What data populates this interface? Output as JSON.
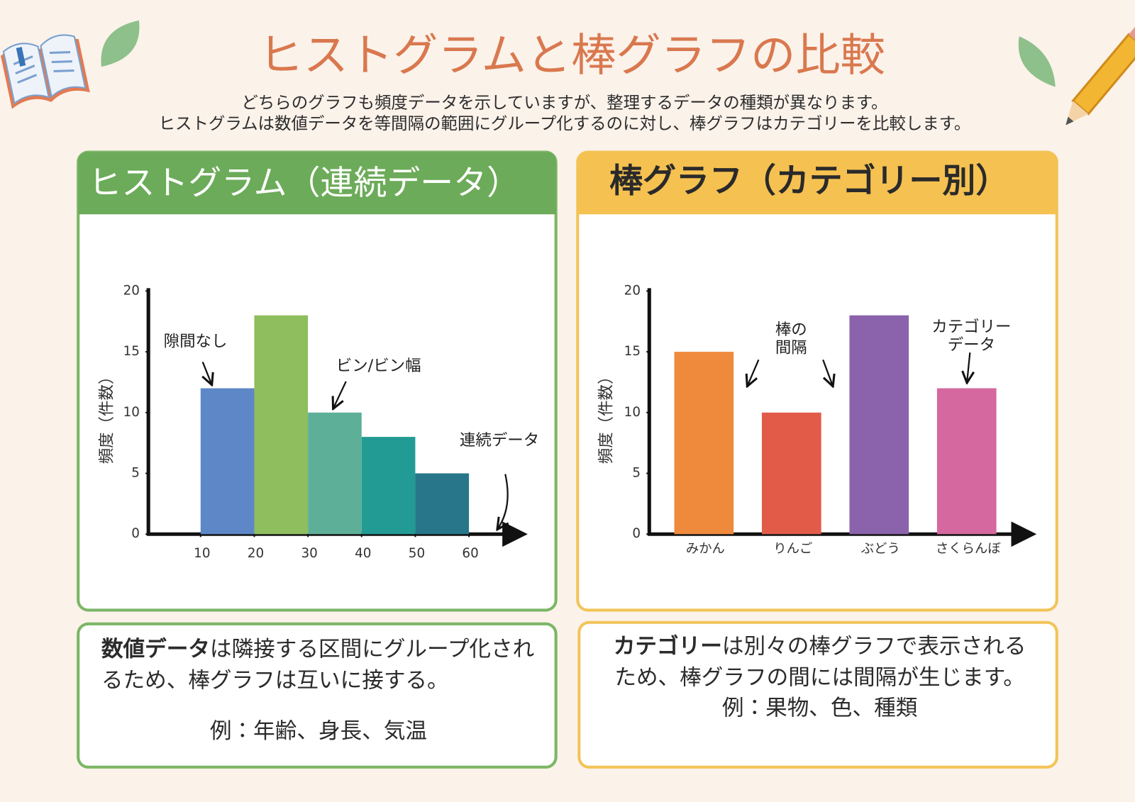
{
  "header": {
    "title": "ヒストグラムと棒グラフの比較",
    "subtitle": [
      "どちらのグラフも頻度データを示していますが、整理するデータの種類が異なります。",
      "ヒストグラムは数値データを等間隔の範囲にグループ化するのに対し、棒グラフはカテゴリーを比較します。"
    ]
  },
  "chart_data": [
    {
      "type": "histogram",
      "title": "ヒストグラム（連続データ）",
      "y_label": "頻度（件数）",
      "bins": [
        10,
        20,
        30,
        40,
        50,
        60
      ],
      "values": [
        12,
        18,
        10,
        8,
        5
      ],
      "colors": [
        "#5d87c6",
        "#8fbe5e",
        "#5daf98",
        "#229b94",
        "#27768a"
      ],
      "xlim": [
        0,
        70
      ],
      "xticks": [
        10,
        20,
        30,
        40,
        50,
        60
      ],
      "ylim": [
        0,
        20
      ],
      "yticks": [
        0,
        5,
        10,
        15,
        20
      ],
      "annotations": [
        "隙間なし",
        "ビン/ビン幅",
        "連続データ"
      ]
    },
    {
      "type": "bar",
      "title": "棒グラフ（カテゴリー別）",
      "y_label": "頻度（件数）",
      "categories": [
        "みかん",
        "りんご",
        "ぶどう",
        "さくらんぼ"
      ],
      "values": [
        15,
        10,
        18,
        12
      ],
      "colors": [
        "#ef8a3d",
        "#e25b49",
        "#8b63ad",
        "#d4689f"
      ],
      "ylim": [
        0,
        20
      ],
      "yticks": [
        0,
        5,
        10,
        15,
        20
      ],
      "annotations": [
        [
          "棒の",
          "間隔"
        ],
        [
          "カテゴリー",
          "データ"
        ]
      ]
    }
  ],
  "notes": [
    {
      "bold": "数値データ",
      "text": "は隣接する区間にグループ化されるため、棒グラフは互いに接する。",
      "example": "例：年齢、身長、気温"
    },
    {
      "bold": "カテゴリー",
      "text": "は別々の棒グラフで表示されるため、棒グラフの間には間隔が生じます。",
      "example": "例：果物、色、種類"
    }
  ]
}
